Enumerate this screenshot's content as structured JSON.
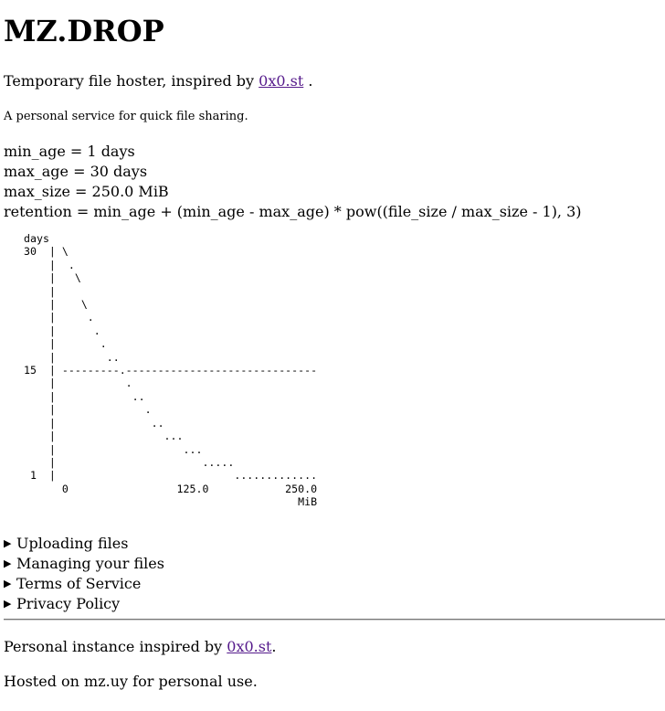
{
  "title": "MZ.DROP",
  "intro": {
    "text": "Temporary file hoster, inspired by",
    "link": "0x0.st",
    "suffix": " ."
  },
  "subtitle": "A personal service for quick file sharing.",
  "params": {
    "min_age": "min_age = 1 days",
    "max_age": "max_age = 30 days",
    "max_size": "max_size = 250.0 MiB",
    "retention": "retention = min_age + (min_age - max_age) * pow((file_size / max_size - 1), 3)"
  },
  "chart_data": {
    "type": "line",
    "ylabel": "days",
    "xlabel": "MiB",
    "x_ticks": [
      "0",
      "125.0",
      "250.0"
    ],
    "y_ticks": [
      "30",
      "15",
      "1"
    ],
    "xlim": [
      0,
      250.0
    ],
    "ylim": [
      1,
      30
    ],
    "reference_line_y": 15,
    "formula": "retention = min_age + (min_age - max_age) * pow((file_size / max_size - 1), 3)"
  },
  "sections": [
    {
      "label": "Uploading files"
    },
    {
      "label": "Managing your files"
    },
    {
      "label": "Terms of Service"
    },
    {
      "label": "Privacy Policy"
    }
  ],
  "footer": {
    "line1_text": "Personal instance inspired by ",
    "line1_link": "0x0.st",
    "line1_suffix": ".",
    "line2": "Hosted on mz.uy for personal use."
  }
}
